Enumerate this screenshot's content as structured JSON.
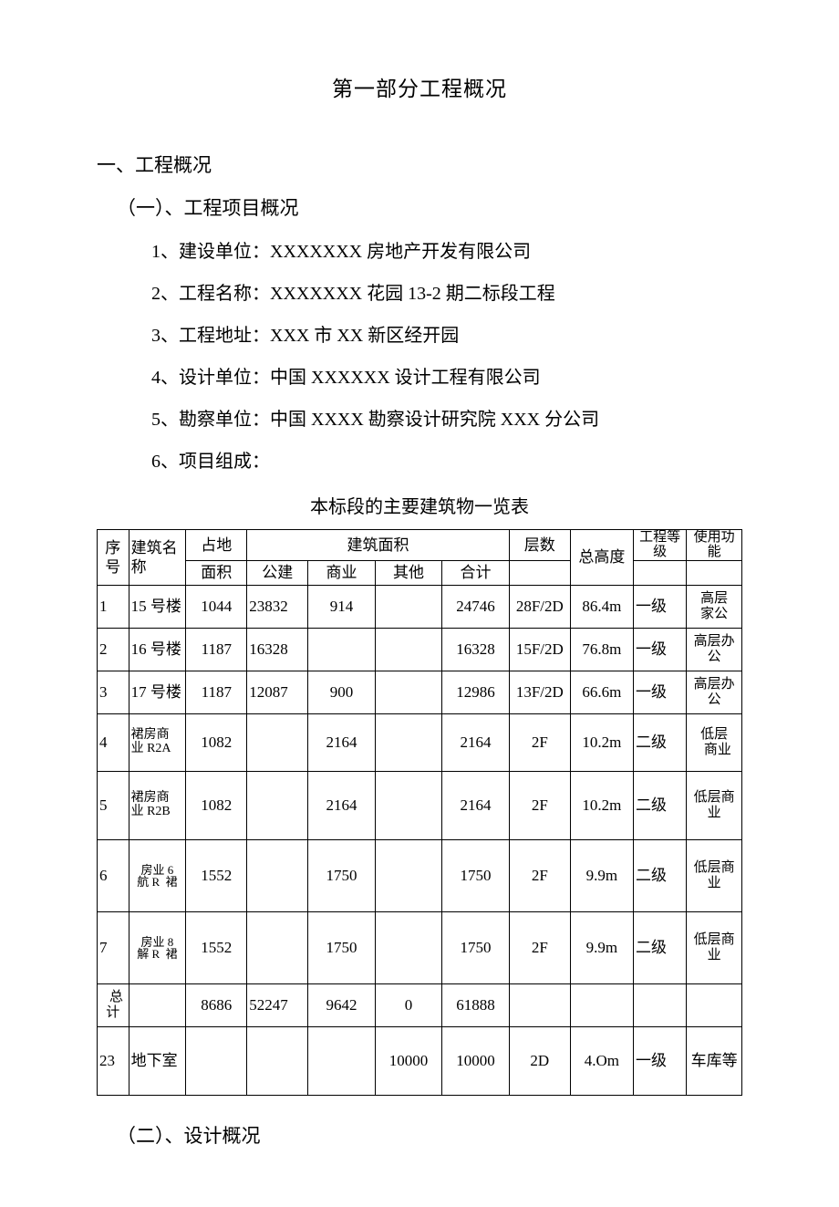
{
  "title": "第一部分工程概况",
  "section1": "一、工程概况",
  "sub1": "（一）、工程项目概况",
  "items": {
    "i1": "1、建设单位：XXXXXXX 房地产开发有限公司",
    "i2": "2、工程名称：XXXXXXX 花园 13-2 期二标段工程",
    "i3": "3、工程地址：XXX 市 XX 新区经开园",
    "i4": "4、设计单位：中国 XXXXXX 设计工程有限公司",
    "i5": "5、勘察单位：中国 XXXX 勘察设计研究院 XXX 分公司",
    "i6": "6、项目组成："
  },
  "table_caption": "本标段的主要建筑物一览表",
  "headers": {
    "seq": "序号",
    "name": "建筑名称",
    "land": "占地",
    "area_group": "建筑面积",
    "floors": "层数",
    "height": "总高度",
    "grade": "工程等级",
    "func": "使用功能",
    "area": "面积",
    "pub": "公建",
    "biz": "商业",
    "other": "其他",
    "sum": "合计"
  },
  "rows": [
    {
      "seq": "1",
      "name": "15 号楼",
      "name_cls": "left",
      "area": "1044",
      "pub": "23832",
      "biz": "914",
      "other": "",
      "sum": "24746",
      "floors": "28F/2D",
      "height": "86.4m",
      "grade": "一级",
      "func": "高层\n家公",
      "func_cls": "func-small",
      "row_cls": "r-short"
    },
    {
      "seq": "2",
      "name": "16 号楼",
      "name_cls": "left",
      "area": "1187",
      "pub": "16328",
      "biz": "",
      "other": "",
      "sum": "16328",
      "floors": "15F/2D",
      "height": "76.8m",
      "grade": "一级",
      "func": "高层办\n公",
      "func_cls": "func-small",
      "row_cls": "r-short"
    },
    {
      "seq": "3",
      "name": "17 号楼",
      "name_cls": "left",
      "area": "1187",
      "pub": "12087",
      "biz": "900",
      "other": "",
      "sum": "12986",
      "floors": "13F/2D",
      "height": "66.6m",
      "grade": "一级",
      "func": "高层办\n公",
      "func_cls": "func-small",
      "row_cls": "r-short"
    },
    {
      "seq": "4",
      "name": "裙房商\n业 R2A",
      "name_cls": "left name-special",
      "area": "1082",
      "pub": "",
      "biz": "2164",
      "other": "",
      "sum": "2164",
      "floors": "2F",
      "height": "10.2m",
      "grade": "二级",
      "func": "低层\n  商业",
      "func_cls": "func-small",
      "row_cls": "r-mid"
    },
    {
      "seq": "5",
      "name": "裙房商\n业 R2B",
      "name_cls": "left name-special",
      "area": "1082",
      "pub": "",
      "biz": "2164",
      "other": "",
      "sum": "2164",
      "floors": "2F",
      "height": "10.2m",
      "grade": "二级",
      "func": "低层商\n业",
      "func_cls": "func-small",
      "row_cls": "r-tall"
    },
    {
      "seq": "6",
      "name": "房业 6\n航 R  裙",
      "name_cls": "name-vert",
      "area": "1552",
      "pub": "",
      "biz": "1750",
      "other": "",
      "sum": "1750",
      "floors": "2F",
      "height": "9.9m",
      "grade": "二级",
      "func": "低层商\n业",
      "func_cls": "func-small",
      "row_cls": "r-tall"
    },
    {
      "seq": "7",
      "name": "房业 8\n解 R  裙",
      "name_cls": "name-vert",
      "area": "1552",
      "pub": "",
      "biz": "1750",
      "other": "",
      "sum": "1750",
      "floors": "2F",
      "height": "9.9m",
      "grade": "二级",
      "func": "低层商\n业",
      "func_cls": "func-small",
      "row_cls": "r-tall"
    },
    {
      "seq": "  总\n计",
      "seq_cls": "func-small",
      "name": "",
      "area": "8686",
      "pub": "52247",
      "biz": "9642",
      "other": "0",
      "sum": "61888",
      "floors": "",
      "height": "",
      "grade": "",
      "func": "",
      "row_cls": "r-short"
    },
    {
      "seq": "23",
      "name": "地下室",
      "name_cls": "left",
      "area": "",
      "pub": "",
      "biz": "",
      "other": "10000",
      "sum": "10000",
      "floors": "2D",
      "height": "4.Om",
      "grade": "一级",
      "func": "车库等",
      "row_cls": "r-tall"
    }
  ],
  "sub2": "（二）、设计概况"
}
